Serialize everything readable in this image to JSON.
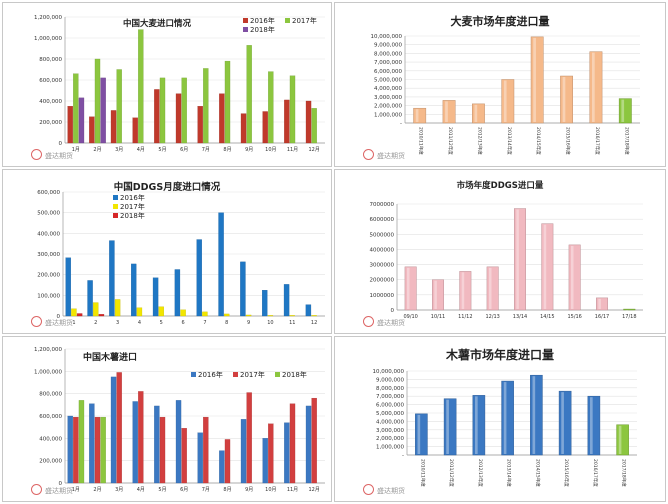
{
  "watermark": "盛达期货",
  "chart_data": [
    {
      "id": "barley-monthly",
      "type": "bar",
      "title": "中国大麦进口情况",
      "categories": [
        "1月",
        "2月",
        "3月",
        "4月",
        "5月",
        "6月",
        "7月",
        "8月",
        "9月",
        "10月",
        "11月",
        "12月"
      ],
      "ylim": [
        0,
        1200000
      ],
      "yticks": [
        "0",
        "200,000",
        "400,000",
        "600,000",
        "800,000",
        "1,000,000",
        "1,200,000"
      ],
      "legend_position": "top-right",
      "series": [
        {
          "name": "2016年",
          "color": "#c0392b",
          "values": [
            350000,
            250000,
            310000,
            240000,
            510000,
            470000,
            350000,
            470000,
            280000,
            300000,
            410000,
            400000
          ]
        },
        {
          "name": "2017年",
          "color": "#8cc63f",
          "values": [
            660000,
            800000,
            700000,
            1080000,
            620000,
            620000,
            710000,
            780000,
            930000,
            680000,
            640000,
            330000
          ]
        },
        {
          "name": "2018年",
          "color": "#7f4fa3",
          "values": [
            430000,
            620000,
            null,
            null,
            null,
            null,
            null,
            null,
            null,
            null,
            null,
            null
          ]
        }
      ]
    },
    {
      "id": "barley-yearly",
      "type": "bar",
      "title": "大麦市场年度进口量",
      "categories": [
        "2010/11年度",
        "2011/12年度",
        "2012/13年度",
        "2013/14年度",
        "2014/15年度",
        "2015/16年度",
        "2016/17年度",
        "2017/18年度"
      ],
      "ylim": [
        0,
        10000000
      ],
      "yticks": [
        "-",
        "1,000,000",
        "2,000,000",
        "3,000,000",
        "4,000,000",
        "5,000,000",
        "6,000,000",
        "7,000,000",
        "8,000,000",
        "9,000,000",
        "10,000,000"
      ],
      "values": [
        1700000,
        2600000,
        2200000,
        5000000,
        9900000,
        5400000,
        8200000,
        2800000
      ],
      "colors": [
        "#f5b98a",
        "#f5b98a",
        "#f5b98a",
        "#f5b98a",
        "#f5b98a",
        "#f5b98a",
        "#f5b98a",
        "#8cc63f"
      ]
    },
    {
      "id": "ddgs-monthly",
      "type": "bar",
      "title": "中国DDGS月度进口情况",
      "categories": [
        "1",
        "2",
        "3",
        "4",
        "5",
        "6",
        "7",
        "8",
        "9",
        "10",
        "11",
        "12"
      ],
      "ylim": [
        0,
        600000
      ],
      "yticks": [
        "0",
        "100,000",
        "200,000",
        "300,000",
        "400,000",
        "500,000",
        "600,000"
      ],
      "legend_position": "top-left",
      "series": [
        {
          "name": "2016年",
          "color": "#1f77c4",
          "values": [
            282000,
            172000,
            365000,
            252000,
            185000,
            225000,
            370000,
            500000,
            262000,
            125000,
            153000,
            55000
          ]
        },
        {
          "name": "2017年",
          "color": "#f2e600",
          "values": [
            35000,
            65000,
            80000,
            40000,
            45000,
            30000,
            20000,
            10000,
            5000,
            3000,
            3000,
            3000
          ]
        },
        {
          "name": "2018年",
          "color": "#d62728",
          "values": [
            12000,
            8000,
            null,
            null,
            null,
            null,
            null,
            null,
            null,
            null,
            null,
            null
          ]
        }
      ]
    },
    {
      "id": "ddgs-yearly",
      "type": "bar",
      "title": "市场年度DDGS进口量",
      "categories": [
        "09/10",
        "10/11",
        "11/12",
        "12/13",
        "13/14",
        "14/15",
        "15/16",
        "16/17",
        "17/18"
      ],
      "ylim": [
        0,
        7000000
      ],
      "yticks": [
        "0",
        "1000000",
        "2000000",
        "3000000",
        "4000000",
        "5000000",
        "6000000",
        "7000000"
      ],
      "values": [
        2850000,
        2000000,
        2550000,
        2850000,
        6700000,
        5700000,
        4300000,
        800000,
        60000
      ],
      "colors": [
        "#f1b9c0",
        "#f1b9c0",
        "#f1b9c0",
        "#f1b9c0",
        "#f1b9c0",
        "#f1b9c0",
        "#f1b9c0",
        "#f1b9c0",
        "#8cc63f"
      ]
    },
    {
      "id": "cassava-monthly",
      "type": "bar",
      "title": "中国木薯进口",
      "categories": [
        "1月",
        "2月",
        "3月",
        "4月",
        "5月",
        "6月",
        "7月",
        "8月",
        "9月",
        "10月",
        "11月",
        "12月"
      ],
      "ylim": [
        0,
        1200000
      ],
      "yticks": [
        "0",
        "200,000",
        "400,000",
        "600,000",
        "800,000",
        "1,000,000",
        "1,200,000"
      ],
      "legend_position": "top-right",
      "series": [
        {
          "name": "2016年",
          "color": "#3b78c2",
          "values": [
            600000,
            710000,
            950000,
            730000,
            690000,
            740000,
            450000,
            290000,
            570000,
            400000,
            540000,
            690000
          ]
        },
        {
          "name": "2017年",
          "color": "#d23f3f",
          "values": [
            590000,
            590000,
            990000,
            820000,
            590000,
            490000,
            590000,
            390000,
            810000,
            530000,
            710000,
            760000
          ]
        },
        {
          "name": "2018年",
          "color": "#8cc63f",
          "values": [
            740000,
            590000,
            null,
            null,
            null,
            null,
            null,
            null,
            null,
            null,
            null,
            null
          ]
        }
      ]
    },
    {
      "id": "cassava-yearly",
      "type": "bar",
      "title": "木薯市场年度进口量",
      "categories": [
        "2010/11年度",
        "2011/12年度",
        "2012/13年度",
        "2013/14年度",
        "2014/15年度",
        "2015/16年度",
        "2016/17年度",
        "2017/18年度"
      ],
      "ylim": [
        0,
        10000000
      ],
      "yticks": [
        "-",
        "1,000,000",
        "2,000,000",
        "3,000,000",
        "4,000,000",
        "5,000,000",
        "6,000,000",
        "7,000,000",
        "8,000,000",
        "9,000,000",
        "10,000,000"
      ],
      "values": [
        4900000,
        6700000,
        7100000,
        8800000,
        9500000,
        7600000,
        7000000,
        3600000
      ],
      "colors": [
        "#3b78c2",
        "#3b78c2",
        "#3b78c2",
        "#3b78c2",
        "#3b78c2",
        "#3b78c2",
        "#3b78c2",
        "#8cc63f"
      ]
    }
  ]
}
